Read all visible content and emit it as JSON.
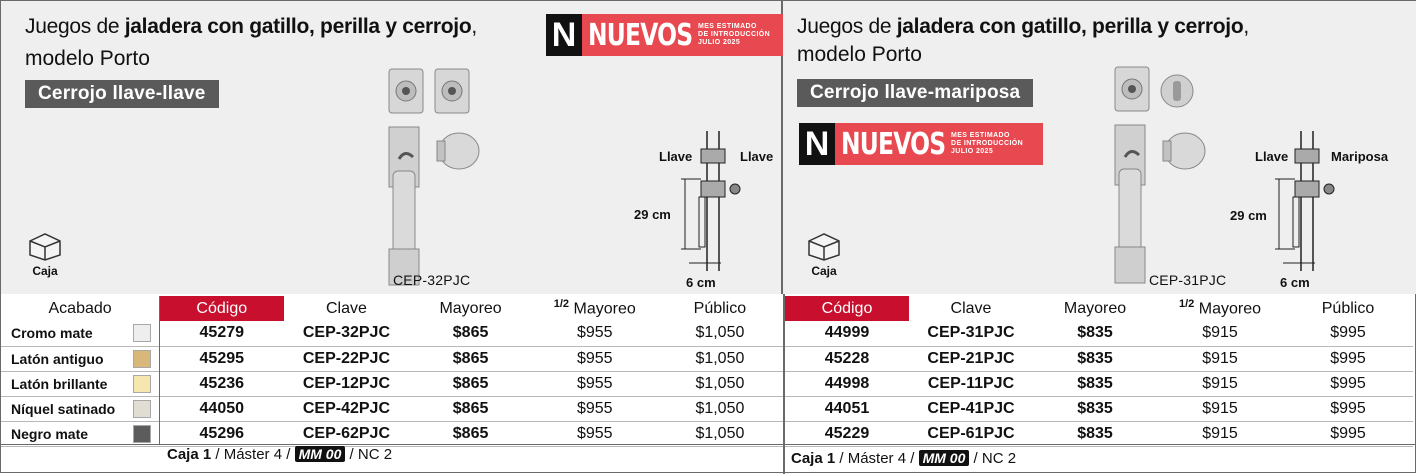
{
  "left": {
    "title_pre": "Juegos de ",
    "title_bold": "jaladera con gatillo, perilla y cerrojo",
    "title_post": ",",
    "subtitle": "modelo Porto",
    "variant": "Cerrojo llave-llave",
    "badge": {
      "letter": "N",
      "word": "NUEVOS",
      "line1": "MES ESTIMADO",
      "line2": "DE INTRODUCCIÓN",
      "line3": "JULIO 2025"
    },
    "caja": "Caja",
    "model": "CEP-32PJC",
    "dim_left": "Llave",
    "dim_right": "Llave",
    "dim_height": "29 cm",
    "dim_width": "6 cm",
    "headers": {
      "acabado": "Acabado",
      "codigo": "Código",
      "clave": "Clave",
      "mayoreo": "Mayoreo",
      "half_num": "1/2",
      "half": "Mayoreo",
      "publico": "Público"
    },
    "rows": [
      {
        "acabado": "Cromo mate",
        "swatch": "#eeeeee",
        "codigo": "45279",
        "clave": "CEP-32PJC",
        "mayoreo": "$865",
        "medio": "$955",
        "publico": "$1,050"
      },
      {
        "acabado": "Latón antiguo",
        "swatch": "#d9b67a",
        "codigo": "45295",
        "clave": "CEP-22PJC",
        "mayoreo": "$865",
        "medio": "$955",
        "publico": "$1,050"
      },
      {
        "acabado": "Latón brillante",
        "swatch": "#f6e7b0",
        "codigo": "45236",
        "clave": "CEP-12PJC",
        "mayoreo": "$865",
        "medio": "$955",
        "publico": "$1,050"
      },
      {
        "acabado": "Níquel satinado",
        "swatch": "#e2ddd2",
        "codigo": "44050",
        "clave": "CEP-42PJC",
        "mayoreo": "$865",
        "medio": "$955",
        "publico": "$1,050"
      },
      {
        "acabado": "Negro mate",
        "swatch": "#5c5c5c",
        "codigo": "45296",
        "clave": "CEP-62PJC",
        "mayoreo": "$865",
        "medio": "$955",
        "publico": "$1,050"
      }
    ],
    "footer": {
      "caja": "Caja 1",
      "master": " / Máster 4 / ",
      "mm": "MM 00",
      "nc": " / NC 2"
    }
  },
  "right": {
    "title_pre": "Juegos de ",
    "title_bold": "jaladera con gatillo, perilla y cerrojo",
    "title_post": ",",
    "subtitle": "modelo Porto",
    "variant": "Cerrojo llave-mariposa",
    "badge": {
      "letter": "N",
      "word": "NUEVOS",
      "line1": "MES ESTIMADO",
      "line2": "DE INTRODUCCIÓN",
      "line3": "JULIO 2025"
    },
    "caja": "Caja",
    "model": "CEP-31PJC",
    "dim_left": "Llave",
    "dim_right": "Mariposa",
    "dim_height": "29 cm",
    "dim_width": "6 cm",
    "headers": {
      "codigo": "Código",
      "clave": "Clave",
      "mayoreo": "Mayoreo",
      "half_num": "1/2",
      "half": "Mayoreo",
      "publico": "Público"
    },
    "rows": [
      {
        "codigo": "44999",
        "clave": "CEP-31PJC",
        "mayoreo": "$835",
        "medio": "$915",
        "publico": "$995"
      },
      {
        "codigo": "45228",
        "clave": "CEP-21PJC",
        "mayoreo": "$835",
        "medio": "$915",
        "publico": "$995"
      },
      {
        "codigo": "44998",
        "clave": "CEP-11PJC",
        "mayoreo": "$835",
        "medio": "$915",
        "publico": "$995"
      },
      {
        "codigo": "44051",
        "clave": "CEP-41PJC",
        "mayoreo": "$835",
        "medio": "$915",
        "publico": "$995"
      },
      {
        "codigo": "45229",
        "clave": "CEP-61PJC",
        "mayoreo": "$835",
        "medio": "$915",
        "publico": "$995"
      }
    ],
    "footer": {
      "caja": "Caja 1",
      "master": " / Máster 4 / ",
      "mm": "MM 00",
      "nc": " / NC 2"
    }
  }
}
